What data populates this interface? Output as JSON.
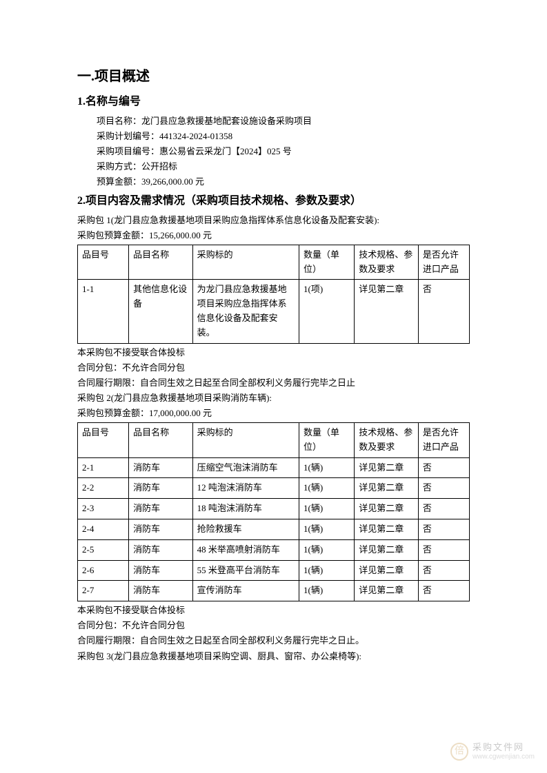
{
  "section_title": "一.项目概述",
  "sub1": {
    "title": "1.名称与编号",
    "lines": {
      "project_name_label": "项目名称：",
      "project_name": "龙门县应急救援基地配套设施设备采购项目",
      "plan_no_label": "采购计划编号：",
      "plan_no": "441324-2024-01358",
      "proj_no_label": "采购项目编号：",
      "proj_no": "惠公易省云采龙门【2024】025 号",
      "method_label": "采购方式：",
      "method": "公开招标",
      "budget_label": "预算金额：",
      "budget": "39,266,000.00 元"
    }
  },
  "sub2": {
    "title": "2.项目内容及需求情况（采购项目技术规格、参数及要求）",
    "pkg1": {
      "line": "采购包 1(龙门县应急救援基地项目采购应急指挥体系信息化设备及配套安装):",
      "budget": "采购包预算金额：15,266,000.00 元"
    },
    "headers": {
      "c1": "品目号",
      "c2": "品目名称",
      "c3": "采购标的",
      "c4": "数量（单位）",
      "c5": "技术规格、参数及要求",
      "c6": "是否允许进口产品"
    },
    "table1_rows": [
      {
        "c1": "1-1",
        "c2": "其他信息化设备",
        "c3": "为龙门县应急救援基地项目采购应急指挥体系信息化设备及配套安装。",
        "c4": "1(项)",
        "c5": "详见第二章",
        "c6": "否"
      }
    ],
    "notes_a": [
      "本采购包不接受联合体投标",
      "合同分包：不允许合同分包",
      "合同履行期限：自合同生效之日起至合同全部权利义务履行完毕之日止"
    ],
    "pkg2": {
      "line": "采购包 2(龙门县应急救援基地项目采购消防车辆):",
      "budget": "采购包预算金额：17,000,000.00 元"
    },
    "table2_rows": [
      {
        "c1": "2-1",
        "c2": "消防车",
        "c3": "压缩空气泡沫消防车",
        "c4": "1(辆)",
        "c5": "详见第二章",
        "c6": "否"
      },
      {
        "c1": "2-2",
        "c2": "消防车",
        "c3": "12 吨泡沫消防车",
        "c4": "1(辆)",
        "c5": "详见第二章",
        "c6": "否"
      },
      {
        "c1": "2-3",
        "c2": "消防车",
        "c3": "18 吨泡沫消防车",
        "c4": "1(辆)",
        "c5": "详见第二章",
        "c6": "否"
      },
      {
        "c1": "2-4",
        "c2": "消防车",
        "c3": "抢险救援车",
        "c4": "1(辆)",
        "c5": "详见第二章",
        "c6": "否"
      },
      {
        "c1": "2-5",
        "c2": "消防车",
        "c3": "48 米举高喷射消防车",
        "c4": "1(辆)",
        "c5": "详见第二章",
        "c6": "否"
      },
      {
        "c1": "2-6",
        "c2": "消防车",
        "c3": "55 米登高平台消防车",
        "c4": "1(辆)",
        "c5": "详见第二章",
        "c6": "否"
      },
      {
        "c1": "2-7",
        "c2": "消防车",
        "c3": "宣传消防车",
        "c4": "1(辆)",
        "c5": "详见第二章",
        "c6": "否"
      }
    ],
    "notes_b": [
      "本采购包不接受联合体投标",
      "合同分包：不允许合同分包",
      "合同履行期限：自合同生效之日起至合同全部权利义务履行完毕之日止。"
    ],
    "pkg3": {
      "line": "采购包 3(龙门县应急救援基地项目采购空调、厨具、窗帘、办公桌椅等):"
    }
  },
  "watermark": {
    "cn": "采购文件网",
    "url": "www.cgwenjian.com",
    "icon": "倍"
  }
}
